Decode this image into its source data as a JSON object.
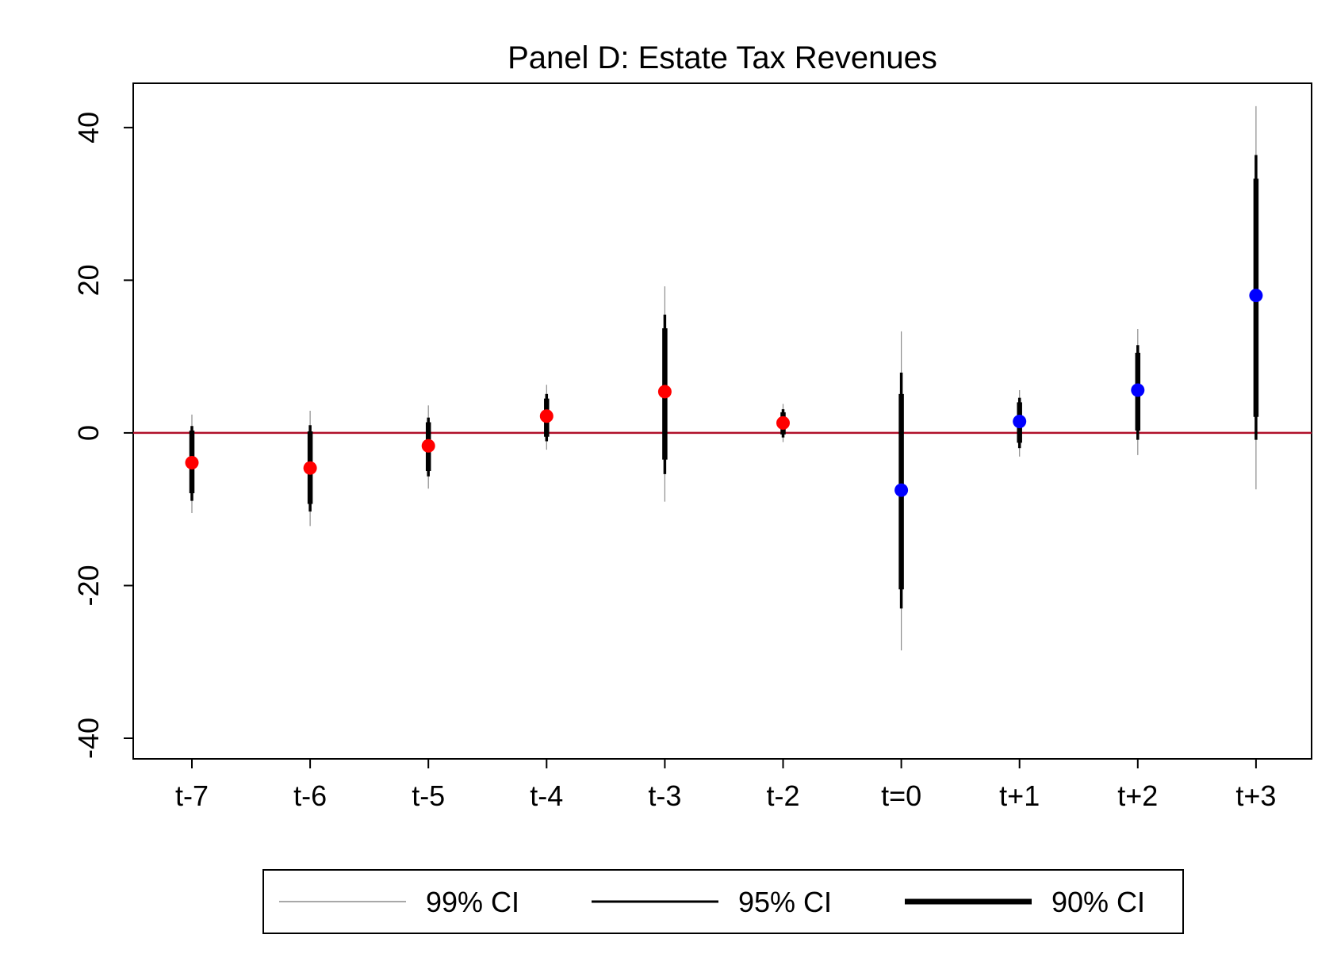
{
  "chart_data": {
    "type": "scatter",
    "title": "Panel D: Estate Tax Revenues",
    "xlabel": "",
    "ylabel": "",
    "ylim": [
      -42.7,
      45.8
    ],
    "yticks": [
      -40,
      -20,
      0,
      20,
      40
    ],
    "ytick_labels": [
      "-40",
      "-20",
      "0",
      "20",
      "40"
    ],
    "categories": [
      "t-7",
      "t-6",
      "t-5",
      "t-4",
      "t-3",
      "t-2",
      "t=0",
      "t+1",
      "t+2",
      "t+3"
    ],
    "grid": false,
    "reference_line": {
      "y": 0,
      "color": "#b0102a"
    },
    "colors": {
      "pre_period": "#ff0000",
      "post_period": "#0000ff",
      "ci": "#000000",
      "ci99": "#8c8c8c"
    },
    "series": [
      {
        "name": "point estimate",
        "values": [
          -3.9,
          -4.6,
          -1.7,
          2.2,
          5.4,
          1.3,
          -7.5,
          1.5,
          5.6,
          18.0
        ],
        "marker_colors": [
          "#ff0000",
          "#ff0000",
          "#ff0000",
          "#ff0000",
          "#ff0000",
          "#ff0000",
          "#0000ff",
          "#0000ff",
          "#0000ff",
          "#0000ff"
        ]
      },
      {
        "name": "99% CI",
        "low": [
          -10.5,
          -12.2,
          -7.3,
          -2.2,
          -9.0,
          -1.2,
          -28.5,
          -3.1,
          -2.9,
          -7.4
        ],
        "high": [
          2.4,
          2.9,
          3.6,
          6.3,
          19.2,
          3.8,
          13.3,
          5.6,
          13.6,
          42.8
        ]
      },
      {
        "name": "95% CI",
        "low": [
          -8.9,
          -10.3,
          -5.7,
          -1.1,
          -5.4,
          -0.6,
          -23.0,
          -2.0,
          -0.9,
          -0.9
        ],
        "high": [
          0.9,
          1.0,
          2.0,
          5.1,
          15.5,
          3.1,
          7.9,
          4.6,
          11.5,
          36.4
        ]
      },
      {
        "name": "90% CI",
        "low": [
          -7.9,
          -9.3,
          -5.0,
          -0.5,
          -3.5,
          -0.2,
          -20.5,
          -1.3,
          0.3,
          2.1
        ],
        "high": [
          0.3,
          0.2,
          1.4,
          4.5,
          13.7,
          2.7,
          5.1,
          4.0,
          10.5,
          33.3
        ]
      }
    ],
    "legend": {
      "position": "bottom",
      "entries": [
        {
          "label": "99% CI",
          "style": "thin"
        },
        {
          "label": "95% CI",
          "style": "medium"
        },
        {
          "label": "90% CI",
          "style": "thick"
        }
      ]
    }
  }
}
